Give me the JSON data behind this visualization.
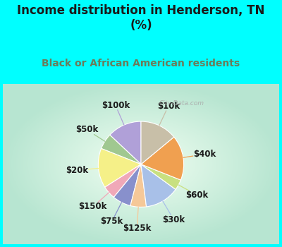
{
  "title": "Income distribution in Henderson, TN\n(%)",
  "subtitle": "Black or African American residents",
  "title_color": "#1a1a1a",
  "subtitle_color": "#6b7b5a",
  "background_outer": "#00ffff",
  "labels": [
    "$100k",
    "$50k",
    "$20k",
    "$150k",
    "$75k",
    "$125k",
    "$30k",
    "$60k",
    "$40k",
    "$10k"
  ],
  "values": [
    13,
    6,
    15,
    5,
    7,
    6,
    13,
    4,
    17,
    14
  ],
  "colors": [
    "#b0a0d8",
    "#a0c890",
    "#f5f088",
    "#f0a8b8",
    "#8890cc",
    "#f5c898",
    "#a8c0e8",
    "#c8e080",
    "#f0a050",
    "#c8bfa8"
  ],
  "startangle": 90,
  "wedge_edge_color": "#ffffff",
  "wedge_lw": 0.8,
  "label_fontsize": 8.5,
  "title_fontsize": 12,
  "subtitle_fontsize": 10
}
